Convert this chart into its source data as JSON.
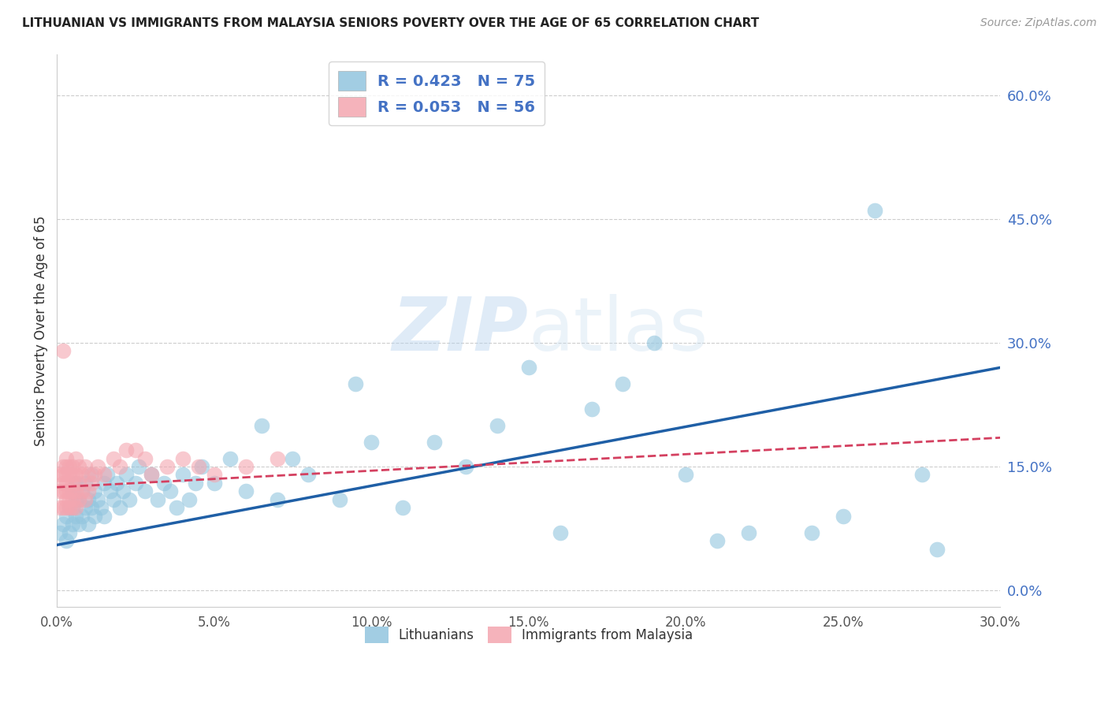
{
  "title": "LITHUANIAN VS IMMIGRANTS FROM MALAYSIA SENIORS POVERTY OVER THE AGE OF 65 CORRELATION CHART",
  "source": "Source: ZipAtlas.com",
  "ylabel": "Seniors Poverty Over the Age of 65",
  "xmin": 0.0,
  "xmax": 0.3,
  "ymin": -0.02,
  "ymax": 0.65,
  "yticks": [
    0.0,
    0.15,
    0.3,
    0.45,
    0.6
  ],
  "xticks": [
    0.0,
    0.05,
    0.1,
    0.15,
    0.2,
    0.25,
    0.3
  ],
  "legend1_label": "R = 0.423   N = 75",
  "legend2_label": "R = 0.053   N = 56",
  "legend_label1": "Lithuanians",
  "legend_label2": "Immigrants from Malaysia",
  "blue_color": "#92c5de",
  "pink_color": "#f4a6b0",
  "blue_line_color": "#1f5fa6",
  "pink_line_color": "#d44060",
  "watermark_color": "#dce9f5",
  "blue_scatter_x": [
    0.001,
    0.002,
    0.003,
    0.003,
    0.004,
    0.004,
    0.005,
    0.005,
    0.005,
    0.006,
    0.006,
    0.006,
    0.007,
    0.007,
    0.008,
    0.008,
    0.009,
    0.009,
    0.01,
    0.01,
    0.011,
    0.011,
    0.012,
    0.012,
    0.013,
    0.014,
    0.015,
    0.015,
    0.016,
    0.017,
    0.018,
    0.019,
    0.02,
    0.021,
    0.022,
    0.023,
    0.025,
    0.026,
    0.028,
    0.03,
    0.032,
    0.034,
    0.036,
    0.038,
    0.04,
    0.042,
    0.044,
    0.046,
    0.05,
    0.055,
    0.06,
    0.065,
    0.07,
    0.075,
    0.08,
    0.09,
    0.095,
    0.1,
    0.11,
    0.12,
    0.13,
    0.14,
    0.15,
    0.16,
    0.17,
    0.18,
    0.19,
    0.2,
    0.21,
    0.22,
    0.24,
    0.25,
    0.26,
    0.275,
    0.28
  ],
  "blue_scatter_y": [
    0.07,
    0.08,
    0.06,
    0.09,
    0.07,
    0.1,
    0.08,
    0.1,
    0.12,
    0.09,
    0.11,
    0.13,
    0.08,
    0.11,
    0.09,
    0.12,
    0.1,
    0.13,
    0.08,
    0.11,
    0.1,
    0.14,
    0.09,
    0.12,
    0.11,
    0.1,
    0.13,
    0.09,
    0.14,
    0.12,
    0.11,
    0.13,
    0.1,
    0.12,
    0.14,
    0.11,
    0.13,
    0.15,
    0.12,
    0.14,
    0.11,
    0.13,
    0.12,
    0.1,
    0.14,
    0.11,
    0.13,
    0.15,
    0.13,
    0.16,
    0.12,
    0.2,
    0.11,
    0.16,
    0.14,
    0.11,
    0.25,
    0.18,
    0.1,
    0.18,
    0.15,
    0.2,
    0.27,
    0.07,
    0.22,
    0.25,
    0.3,
    0.14,
    0.06,
    0.07,
    0.07,
    0.09,
    0.46,
    0.14,
    0.05
  ],
  "pink_scatter_x": [
    0.001,
    0.001,
    0.001,
    0.002,
    0.002,
    0.002,
    0.002,
    0.002,
    0.003,
    0.003,
    0.003,
    0.003,
    0.003,
    0.003,
    0.003,
    0.004,
    0.004,
    0.004,
    0.004,
    0.004,
    0.005,
    0.005,
    0.005,
    0.005,
    0.005,
    0.005,
    0.006,
    0.006,
    0.006,
    0.006,
    0.007,
    0.007,
    0.007,
    0.008,
    0.008,
    0.009,
    0.009,
    0.01,
    0.01,
    0.011,
    0.012,
    0.013,
    0.015,
    0.018,
    0.02,
    0.022,
    0.025,
    0.028,
    0.03,
    0.035,
    0.04,
    0.045,
    0.05,
    0.06,
    0.07,
    0.002
  ],
  "pink_scatter_y": [
    0.1,
    0.12,
    0.14,
    0.1,
    0.12,
    0.13,
    0.14,
    0.15,
    0.1,
    0.11,
    0.12,
    0.13,
    0.14,
    0.15,
    0.16,
    0.1,
    0.11,
    0.12,
    0.14,
    0.15,
    0.1,
    0.11,
    0.12,
    0.13,
    0.14,
    0.15,
    0.1,
    0.12,
    0.14,
    0.16,
    0.11,
    0.13,
    0.15,
    0.12,
    0.14,
    0.11,
    0.15,
    0.12,
    0.14,
    0.13,
    0.14,
    0.15,
    0.14,
    0.16,
    0.15,
    0.17,
    0.17,
    0.16,
    0.14,
    0.15,
    0.16,
    0.15,
    0.14,
    0.15,
    0.16,
    0.29
  ],
  "blue_line_x0": 0.0,
  "blue_line_y0": 0.055,
  "blue_line_x1": 0.3,
  "blue_line_y1": 0.27,
  "pink_line_x0": 0.0,
  "pink_line_y0": 0.125,
  "pink_line_x1": 0.3,
  "pink_line_y1": 0.185
}
